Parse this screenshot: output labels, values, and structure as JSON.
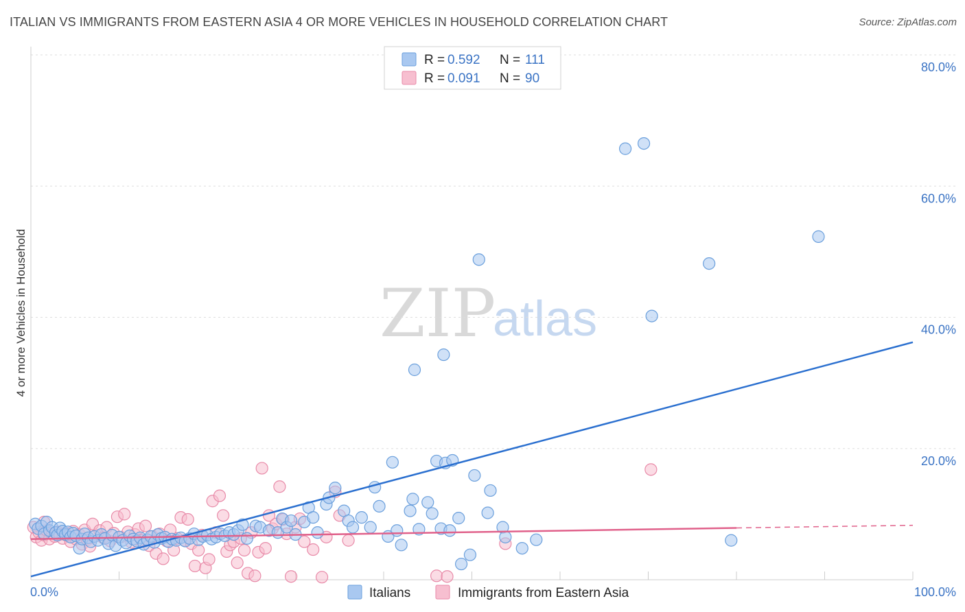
{
  "title": "ITALIAN VS IMMIGRANTS FROM EASTERN ASIA 4 OR MORE VEHICLES IN HOUSEHOLD CORRELATION CHART",
  "source": "Source: ZipAtlas.com",
  "watermark": {
    "zip": "ZIP",
    "atlas": "atlas"
  },
  "colors": {
    "blue_fill": "#a9c8f0",
    "blue_stroke": "#6a9fdc",
    "blue_line": "#2a6fcf",
    "pink_fill": "#f7bfd0",
    "pink_stroke": "#e88aa8",
    "pink_line": "#e0608a",
    "grid": "#dddddd",
    "tick_label": "#3a73c4"
  },
  "legend": {
    "r_label": "R =",
    "n_label": "N =",
    "entries": [
      {
        "series": "Italians",
        "r": "0.592",
        "n": "111"
      },
      {
        "series": "Immigrants from Eastern Asia",
        "r": "0.091",
        "n": "90"
      }
    ]
  },
  "chart_data": {
    "type": "scatter",
    "title": "ITALIAN VS IMMIGRANTS FROM EASTERN ASIA 4 OR MORE VEHICLES IN HOUSEHOLD CORRELATION CHART",
    "xlabel": "",
    "ylabel": "4 or more Vehicles in Household",
    "xlim": [
      0,
      100
    ],
    "ylim": [
      0,
      80
    ],
    "x_tick_labels": [
      "0.0%",
      "100.0%"
    ],
    "y_ticks": [
      20,
      40,
      60,
      80
    ],
    "y_tick_labels": [
      "20.0%",
      "40.0%",
      "60.0%",
      "80.0%"
    ],
    "grid": true,
    "legend_position": "top-center",
    "series": [
      {
        "name": "Italians",
        "color": "#a9c8f0",
        "trend": {
          "x": [
            0,
            100
          ],
          "y": [
            0.5,
            36.2
          ],
          "style": "solid"
        },
        "points": [
          [
            0.5,
            8.5
          ],
          [
            0.8,
            7.8
          ],
          [
            1.2,
            8.2
          ],
          [
            1.5,
            7.0
          ],
          [
            1.8,
            8.8
          ],
          [
            2.1,
            7.5
          ],
          [
            2.4,
            8.0
          ],
          [
            2.8,
            7.2
          ],
          [
            3.0,
            6.8
          ],
          [
            3.3,
            7.9
          ],
          [
            3.6,
            7.4
          ],
          [
            3.9,
            6.9
          ],
          [
            4.2,
            7.3
          ],
          [
            4.5,
            6.5
          ],
          [
            4.8,
            7.1
          ],
          [
            5.1,
            6.7
          ],
          [
            5.5,
            4.8
          ],
          [
            5.8,
            6.2
          ],
          [
            6.1,
            7.0
          ],
          [
            6.5,
            6.4
          ],
          [
            6.8,
            5.8
          ],
          [
            7.2,
            6.6
          ],
          [
            7.6,
            6.0
          ],
          [
            8.0,
            6.9
          ],
          [
            8.4,
            6.3
          ],
          [
            8.8,
            5.5
          ],
          [
            9.2,
            6.8
          ],
          [
            9.6,
            5.2
          ],
          [
            10.0,
            6.5
          ],
          [
            10.4,
            6.0
          ],
          [
            10.8,
            5.6
          ],
          [
            11.2,
            6.7
          ],
          [
            11.6,
            6.2
          ],
          [
            12.0,
            5.9
          ],
          [
            12.4,
            6.4
          ],
          [
            12.8,
            5.4
          ],
          [
            13.2,
            6.1
          ],
          [
            13.6,
            6.6
          ],
          [
            14.0,
            5.7
          ],
          [
            14.4,
            6.9
          ],
          [
            14.8,
            6.3
          ],
          [
            15.2,
            6.5
          ],
          [
            15.6,
            5.8
          ],
          [
            16.0,
            6.2
          ],
          [
            16.5,
            6.0
          ],
          [
            17.0,
            6.4
          ],
          [
            17.5,
            5.9
          ],
          [
            18.0,
            6.3
          ],
          [
            18.5,
            7.0
          ],
          [
            19.0,
            6.1
          ],
          [
            19.5,
            6.6
          ],
          [
            20.0,
            6.8
          ],
          [
            20.5,
            6.2
          ],
          [
            21.0,
            6.5
          ],
          [
            21.5,
            7.0
          ],
          [
            22.0,
            6.7
          ],
          [
            22.5,
            7.2
          ],
          [
            23.0,
            6.9
          ],
          [
            23.5,
            7.5
          ],
          [
            24.0,
            8.4
          ],
          [
            24.5,
            6.3
          ],
          [
            25.5,
            8.2
          ],
          [
            26.0,
            8.0
          ],
          [
            27.0,
            7.5
          ],
          [
            28.0,
            7.2
          ],
          [
            28.5,
            9.3
          ],
          [
            29.0,
            8.0
          ],
          [
            29.5,
            9.0
          ],
          [
            30.0,
            6.9
          ],
          [
            31.0,
            8.8
          ],
          [
            31.5,
            11.0
          ],
          [
            32.0,
            9.5
          ],
          [
            32.5,
            7.2
          ],
          [
            33.5,
            11.5
          ],
          [
            33.8,
            12.5
          ],
          [
            34.5,
            14.0
          ],
          [
            35.5,
            10.5
          ],
          [
            36.0,
            9.0
          ],
          [
            36.5,
            8.0
          ],
          [
            37.5,
            9.5
          ],
          [
            38.5,
            8.0
          ],
          [
            39.0,
            14.1
          ],
          [
            39.5,
            11.2
          ],
          [
            40.5,
            6.6
          ],
          [
            41.0,
            17.9
          ],
          [
            41.5,
            7.5
          ],
          [
            42.0,
            5.3
          ],
          [
            43.0,
            10.5
          ],
          [
            43.3,
            12.3
          ],
          [
            43.5,
            32.0
          ],
          [
            44.0,
            7.7
          ],
          [
            45.0,
            11.8
          ],
          [
            45.5,
            10.1
          ],
          [
            46.0,
            18.1
          ],
          [
            46.5,
            7.8
          ],
          [
            46.8,
            34.3
          ],
          [
            47.0,
            17.8
          ],
          [
            47.5,
            7.5
          ],
          [
            47.8,
            18.2
          ],
          [
            48.5,
            9.4
          ],
          [
            48.8,
            2.4
          ],
          [
            49.8,
            3.8
          ],
          [
            50.3,
            15.9
          ],
          [
            50.8,
            48.8
          ],
          [
            51.8,
            10.2
          ],
          [
            52.1,
            13.6
          ],
          [
            53.5,
            8.0
          ],
          [
            53.8,
            6.5
          ],
          [
            55.7,
            4.8
          ],
          [
            57.3,
            6.1
          ],
          [
            67.4,
            65.7
          ],
          [
            69.5,
            66.5
          ],
          [
            70.4,
            40.2
          ],
          [
            76.9,
            48.2
          ],
          [
            89.3,
            52.3
          ],
          [
            79.4,
            6.0
          ]
        ]
      },
      {
        "name": "Immigrants from Eastern Asia",
        "color": "#f7bfd0",
        "trend": {
          "x": [
            0,
            80
          ],
          "y": [
            6.2,
            7.9
          ],
          "style": "solid",
          "dashed_extension": {
            "x": [
              80,
              100
            ],
            "y": [
              7.9,
              8.3
            ]
          }
        },
        "points": [
          [
            0.3,
            8.0
          ],
          [
            0.6,
            6.5
          ],
          [
            0.9,
            7.2
          ],
          [
            1.2,
            6.0
          ],
          [
            1.5,
            6.8
          ],
          [
            1.8,
            7.5
          ],
          [
            2.1,
            6.2
          ],
          [
            2.4,
            7.0
          ],
          [
            2.7,
            6.6
          ],
          [
            3.0,
            7.3
          ],
          [
            3.3,
            6.9
          ],
          [
            3.6,
            6.3
          ],
          [
            3.9,
            7.1
          ],
          [
            4.2,
            6.7
          ],
          [
            4.5,
            5.8
          ],
          [
            4.8,
            7.4
          ],
          [
            5.1,
            6.2
          ],
          [
            5.5,
            6.9
          ],
          [
            5.8,
            5.4
          ],
          [
            6.1,
            7.6
          ],
          [
            6.4,
            6.1
          ],
          [
            6.7,
            5.1
          ],
          [
            7.0,
            8.5
          ],
          [
            7.4,
            6.8
          ],
          [
            7.8,
            7.5
          ],
          [
            8.2,
            6.4
          ],
          [
            8.6,
            8.0
          ],
          [
            9.0,
            5.9
          ],
          [
            9.4,
            7.1
          ],
          [
            9.8,
            9.6
          ],
          [
            10.2,
            6.5
          ],
          [
            10.6,
            10.0
          ],
          [
            11.0,
            7.3
          ],
          [
            11.4,
            5.7
          ],
          [
            11.8,
            6.9
          ],
          [
            12.2,
            7.8
          ],
          [
            12.6,
            6.0
          ],
          [
            13.0,
            8.2
          ],
          [
            13.4,
            5.2
          ],
          [
            13.8,
            6.6
          ],
          [
            14.2,
            4.0
          ],
          [
            14.6,
            7.0
          ],
          [
            15.0,
            3.2
          ],
          [
            15.4,
            5.9
          ],
          [
            15.8,
            7.6
          ],
          [
            16.2,
            4.5
          ],
          [
            16.6,
            6.3
          ],
          [
            17.0,
            9.5
          ],
          [
            17.4,
            6.0
          ],
          [
            17.8,
            9.2
          ],
          [
            18.2,
            5.5
          ],
          [
            18.6,
            2.1
          ],
          [
            19.0,
            4.5
          ],
          [
            19.4,
            6.8
          ],
          [
            19.8,
            1.8
          ],
          [
            20.2,
            3.1
          ],
          [
            20.6,
            12.0
          ],
          [
            21.0,
            7.2
          ],
          [
            21.4,
            12.8
          ],
          [
            21.8,
            9.8
          ],
          [
            22.2,
            4.3
          ],
          [
            22.6,
            5.3
          ],
          [
            23.0,
            5.8
          ],
          [
            23.4,
            2.6
          ],
          [
            23.8,
            6.3
          ],
          [
            24.2,
            4.5
          ],
          [
            24.6,
            1.0
          ],
          [
            25.0,
            7.2
          ],
          [
            25.4,
            0.6
          ],
          [
            25.8,
            4.2
          ],
          [
            26.2,
            17.0
          ],
          [
            26.6,
            4.8
          ],
          [
            27.0,
            9.8
          ],
          [
            27.4,
            7.8
          ],
          [
            27.8,
            8.5
          ],
          [
            28.2,
            14.2
          ],
          [
            28.6,
            9.2
          ],
          [
            29.0,
            7.0
          ],
          [
            29.5,
            0.5
          ],
          [
            30.0,
            8.0
          ],
          [
            30.5,
            9.3
          ],
          [
            31.0,
            5.8
          ],
          [
            32.0,
            4.6
          ],
          [
            33.0,
            0.4
          ],
          [
            33.5,
            6.5
          ],
          [
            34.5,
            13.4
          ],
          [
            35.0,
            9.8
          ],
          [
            36.0,
            6.0
          ],
          [
            46.0,
            0.6
          ],
          [
            47.2,
            0.5
          ],
          [
            53.8,
            5.5
          ],
          [
            70.3,
            16.8
          ],
          [
            1.5,
            8.8
          ],
          [
            4.0,
            6.8
          ]
        ]
      }
    ]
  }
}
